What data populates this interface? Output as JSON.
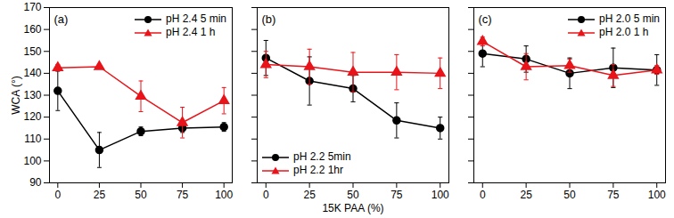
{
  "chart_data": [
    {
      "type": "line",
      "annotation": "(a)",
      "y_label": "WCA (°)",
      "x": [
        0,
        25,
        50,
        75,
        100
      ],
      "xlim": [
        -5,
        105
      ],
      "xticks": [
        0,
        25,
        50,
        75,
        100
      ],
      "ylim": [
        90,
        170
      ],
      "yticks": [
        90,
        100,
        110,
        120,
        130,
        140,
        150,
        160,
        170
      ],
      "legend": "top-right",
      "series": [
        {
          "name": "pH 2.4 5 min",
          "color": "#000000",
          "marker": "circle",
          "values": [
            132,
            105,
            113.5,
            115,
            115.5
          ],
          "errors": [
            9,
            8,
            2,
            2,
            2
          ]
        },
        {
          "name": "pH 2.4 1 h",
          "color": "#e8141a",
          "marker": "triangle",
          "values": [
            142.5,
            143,
            129.5,
            117.5,
            127.5
          ],
          "errors": [
            1.5,
            1,
            7,
            7,
            6
          ]
        }
      ]
    },
    {
      "type": "line",
      "annotation": "(b)",
      "x_label": "15K PAA (%)",
      "x": [
        0,
        25,
        50,
        75,
        100
      ],
      "xlim": [
        -5,
        105
      ],
      "xticks": [
        0,
        25,
        50,
        75,
        100
      ],
      "ylim": [
        90,
        170
      ],
      "yticks": [
        90,
        100,
        110,
        120,
        130,
        140,
        150,
        160,
        170
      ],
      "tick_labels": "x",
      "legend": "bottom-left",
      "series": [
        {
          "name": "pH 2.2 5min",
          "color": "#000000",
          "marker": "circle",
          "values": [
            147,
            136.5,
            133,
            118.5,
            115
          ],
          "errors": [
            8,
            11,
            6,
            8,
            5
          ]
        },
        {
          "name": "pH 2.2 1hr",
          "color": "#e8141a",
          "marker": "triangle",
          "values": [
            144,
            143,
            140.5,
            140.5,
            140
          ],
          "errors": [
            6,
            8,
            9,
            8,
            7
          ]
        }
      ]
    },
    {
      "type": "line",
      "annotation": "(c)",
      "x": [
        0,
        25,
        50,
        75,
        100
      ],
      "xlim": [
        -5,
        105
      ],
      "xticks": [
        0,
        25,
        50,
        75,
        100
      ],
      "ylim": [
        90,
        170
      ],
      "yticks": [
        90,
        100,
        110,
        120,
        130,
        140,
        150,
        160,
        170
      ],
      "tick_labels": "x",
      "legend": "top-right",
      "series": [
        {
          "name": "pH 2.0 5 min",
          "color": "#000000",
          "marker": "circle",
          "values": [
            149,
            146.5,
            140,
            142.5,
            141.5
          ],
          "errors": [
            6,
            6,
            7,
            9,
            7
          ]
        },
        {
          "name": "pH 2.0 1 h",
          "color": "#e8141a",
          "marker": "triangle",
          "values": [
            154.5,
            143,
            143.5,
            139,
            141.5
          ],
          "errors": [
            2,
            6,
            3,
            5,
            2
          ]
        }
      ]
    }
  ]
}
